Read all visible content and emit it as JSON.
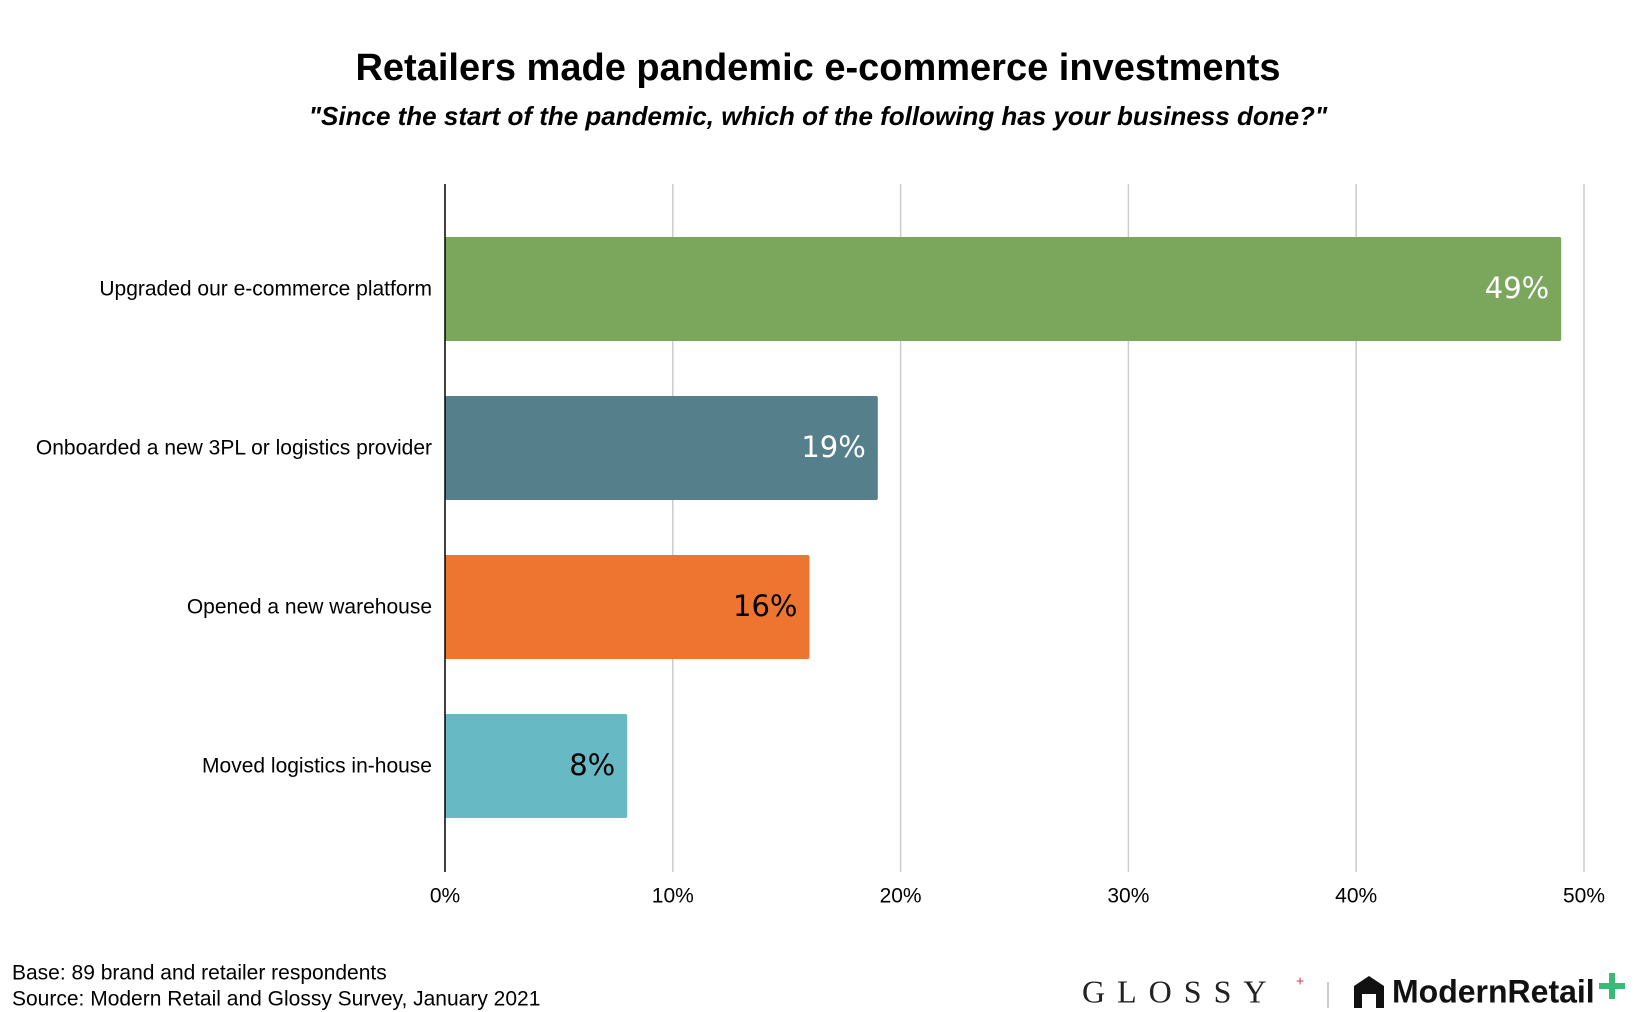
{
  "chart_data": {
    "type": "hbar",
    "title": "Retailers made pandemic e-commerce investments",
    "subtitle": "\"Since the start of the pandemic, which of the following has your business done?\"",
    "categories": [
      "Upgraded our e-commerce platform",
      "Onboarded a new 3PL or logistics provider",
      "Opened a new warehouse",
      "Moved logistics in-house"
    ],
    "values": [
      49,
      19,
      16,
      8
    ],
    "value_labels": [
      "49%",
      "19%",
      "16%",
      "8%"
    ],
    "colors": [
      "#7aa75c",
      "#557f8a",
      "#ed7530",
      "#67bac4"
    ],
    "value_label_colors": [
      "#ffffff",
      "#ffffff",
      "#000000",
      "#000000"
    ],
    "xlim": [
      0,
      50
    ],
    "xticks": [
      {
        "value": 0,
        "label": "0%"
      },
      {
        "value": 10,
        "label": "10%"
      },
      {
        "value": 20,
        "label": "20%"
      },
      {
        "value": 30,
        "label": "30%"
      },
      {
        "value": 40,
        "label": "40%"
      },
      {
        "value": 50,
        "label": "50%"
      }
    ],
    "grid": true,
    "notes": [
      "Base: 89 brand and retailer respondents",
      "Source: Modern Retail and Glossy Survey, January 2021"
    ],
    "brands": [
      "GLOSSY",
      "ModernRetail"
    ]
  }
}
